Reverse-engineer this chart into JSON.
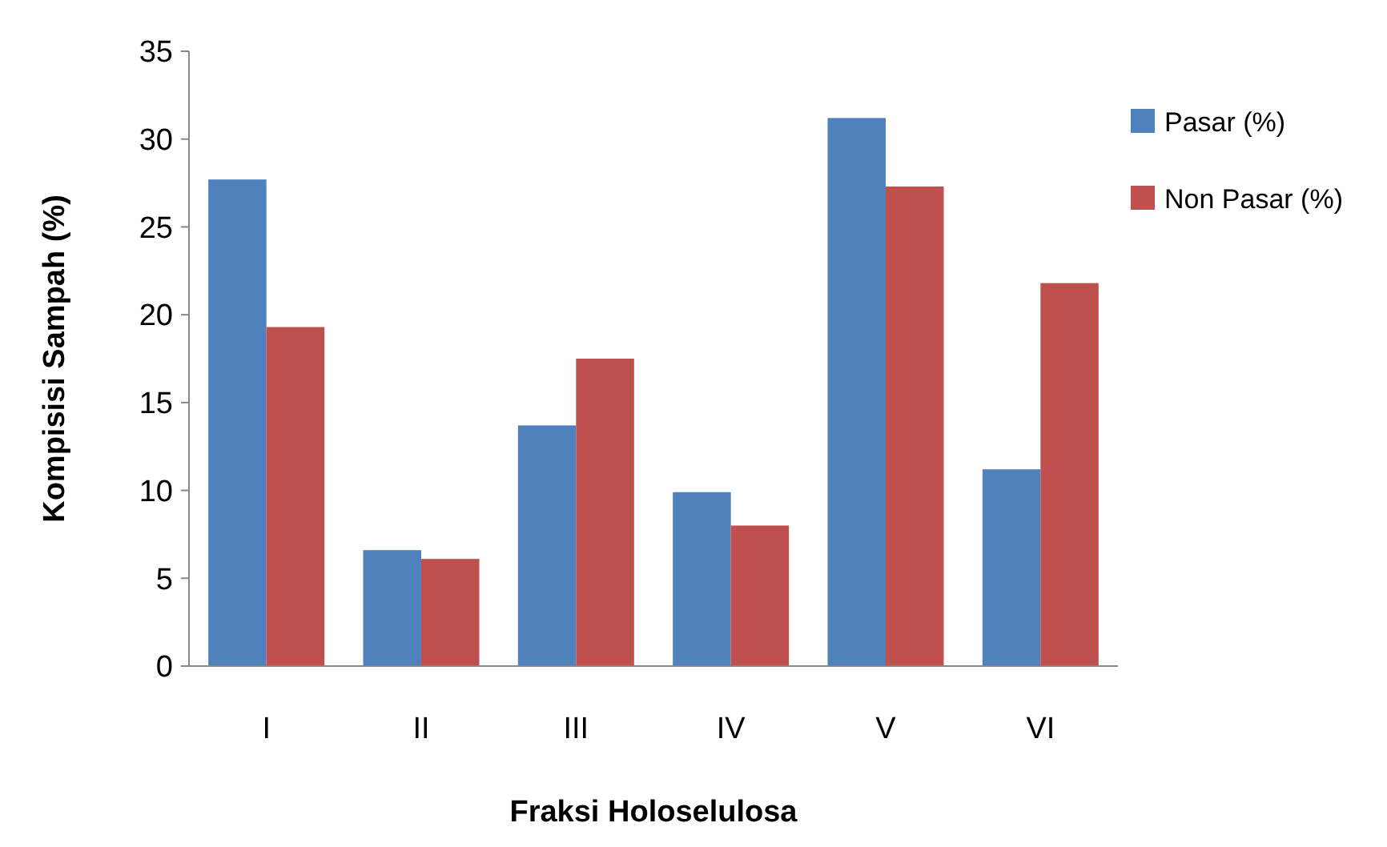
{
  "chart_data": {
    "type": "bar",
    "xlabel": "Fraksi Holoselulosa",
    "ylabel": "Kompisisi Sampah (%)",
    "categories": [
      "I",
      "II",
      "III",
      "IV",
      "V",
      "VI"
    ],
    "series": [
      {
        "name": "Pasar (%)",
        "color": "#4f81bd",
        "values": [
          27.7,
          6.6,
          13.7,
          9.9,
          31.2,
          11.2
        ]
      },
      {
        "name": "Non Pasar (%)",
        "color": "#c0504d",
        "values": [
          19.3,
          6.1,
          17.5,
          8.0,
          27.3,
          21.8
        ]
      }
    ],
    "ylim": [
      0,
      35
    ],
    "yticks": [
      0,
      5,
      10,
      15,
      20,
      25,
      30,
      35
    ],
    "legend": "right"
  }
}
